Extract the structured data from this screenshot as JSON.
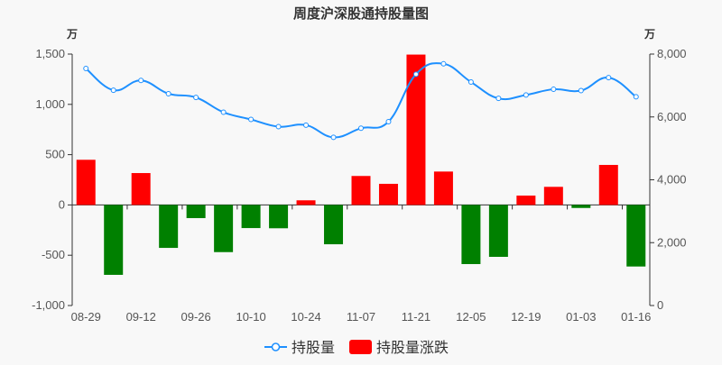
{
  "chart_data": {
    "type": "bar+line",
    "title": "周度沪深股通持股量图",
    "left_unit": "万",
    "right_unit": "万",
    "categories": [
      "08-29",
      "",
      "09-12",
      "",
      "09-26",
      "",
      "10-10",
      "",
      "10-24",
      "",
      "11-07",
      "",
      "11-21",
      "",
      "12-05",
      "",
      "12-19",
      "",
      "01-03",
      "",
      "01-16"
    ],
    "left_axis": {
      "min": -1000,
      "max": 1500,
      "ticks": [
        -1000,
        -500,
        0,
        500,
        1000,
        1500
      ],
      "tick_labels": [
        "-1,000",
        "-500",
        "0",
        "500",
        "1,000",
        "1,500"
      ]
    },
    "right_axis": {
      "min": 0,
      "max": 8000,
      "ticks": [
        0,
        2000,
        4000,
        6000,
        8000
      ],
      "tick_labels": [
        "0",
        "2,000",
        "4,000",
        "6,000",
        "8,000"
      ]
    },
    "grid": false,
    "legend_position": "bottom",
    "series": [
      {
        "name": "持股量",
        "type": "line",
        "axis": "right",
        "smooth": true,
        "color": "#1e90ff",
        "values": [
          7540,
          6850,
          7160,
          6740,
          6620,
          6150,
          5920,
          5690,
          5740,
          5350,
          5640,
          5850,
          7360,
          7690,
          7110,
          6590,
          6700,
          6880,
          6840,
          7250,
          6640
        ]
      },
      {
        "name": "持股量涨跌",
        "type": "bar",
        "axis": "left",
        "color_up": "#ff0000",
        "color_down": "#008000",
        "values": [
          449,
          -695,
          317,
          -427,
          -131,
          -469,
          -230,
          -232,
          46,
          -391,
          288,
          210,
          1495,
          332,
          -588,
          -516,
          93,
          180,
          -30,
          398,
          -612
        ]
      }
    ]
  }
}
